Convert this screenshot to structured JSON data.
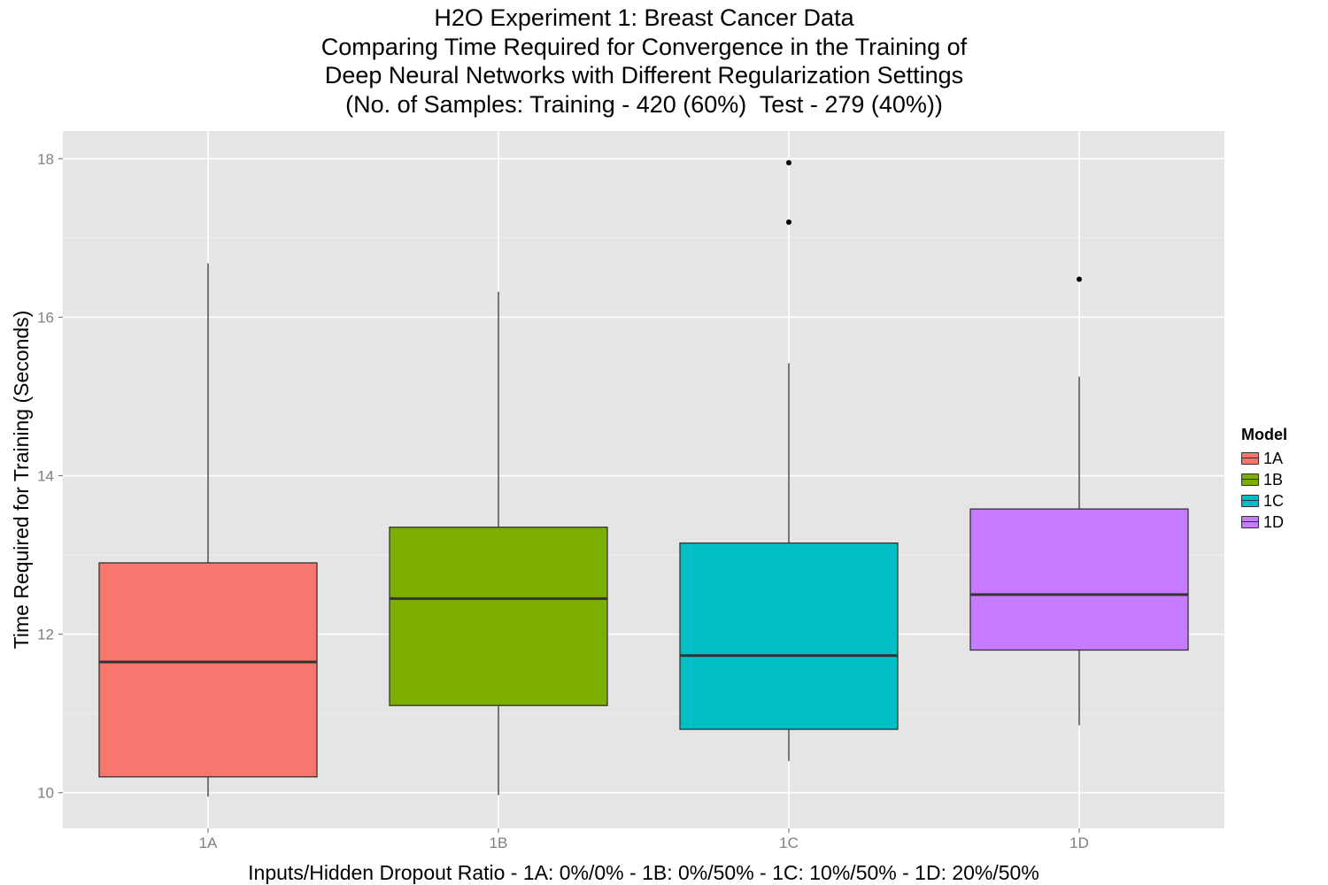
{
  "chart_data": {
    "type": "boxplot",
    "title_lines": [
      "H2O Experiment 1: Breast Cancer Data",
      "Comparing Time Required for Convergence in the Training of",
      "Deep Neural Networks with Different Regularization Settings",
      "(No. of Samples: Training - 420 (60%)  Test - 279 (40%))"
    ],
    "xlabel": "Inputs/Hidden Dropout Ratio - 1A: 0%/0% - 1B: 0%/50% - 1C: 10%/50% - 1D: 20%/50%",
    "ylabel": "Time Required for Training (Seconds)",
    "ylim": [
      9.55,
      18.35
    ],
    "yticks": [
      10,
      12,
      14,
      16,
      18
    ],
    "categories": [
      "1A",
      "1B",
      "1C",
      "1D"
    ],
    "boxes": [
      {
        "name": "1A",
        "color": "#F8766D",
        "whisker_low": 9.95,
        "q1": 10.2,
        "median": 11.65,
        "q3": 12.9,
        "whisker_high": 16.68,
        "outliers": []
      },
      {
        "name": "1B",
        "color": "#7CAE00",
        "whisker_low": 9.97,
        "q1": 11.1,
        "median": 12.45,
        "q3": 13.35,
        "whisker_high": 16.32,
        "outliers": []
      },
      {
        "name": "1C",
        "color": "#00BFC4",
        "whisker_low": 10.4,
        "q1": 10.8,
        "median": 11.73,
        "q3": 13.15,
        "whisker_high": 15.42,
        "outliers": [
          17.95,
          17.2
        ]
      },
      {
        "name": "1D",
        "color": "#C77CFF",
        "whisker_low": 10.85,
        "q1": 11.8,
        "median": 12.5,
        "q3": 13.58,
        "whisker_high": 15.25,
        "outliers": [
          16.48
        ]
      }
    ],
    "legend": {
      "title": "Model",
      "position": "right",
      "entries": [
        "1A",
        "1B",
        "1C",
        "1D"
      ]
    },
    "grid": true
  }
}
